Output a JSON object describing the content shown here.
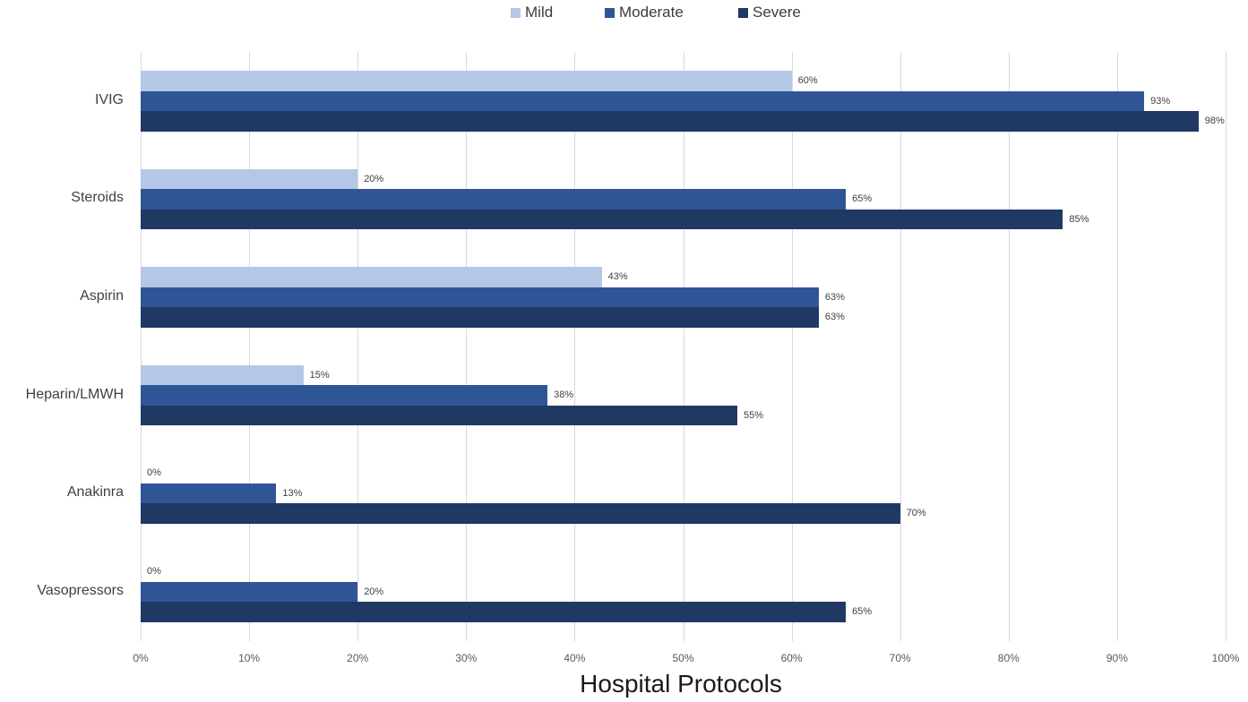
{
  "chart_data": {
    "type": "bar",
    "orientation": "horizontal",
    "title": "",
    "xlabel": "Hospital Protocols",
    "ylabel": "",
    "xlim": [
      0,
      100
    ],
    "x_ticks": [
      "0%",
      "10%",
      "20%",
      "30%",
      "40%",
      "50%",
      "60%",
      "70%",
      "80%",
      "90%",
      "100%"
    ],
    "grid": true,
    "legend_position": "top",
    "categories": [
      "IVIG",
      "Steroids",
      "Aspirin",
      "Heparin/LMWH",
      "Anakinra",
      "Vasopressors"
    ],
    "series": [
      {
        "name": "Mild",
        "color": "#b4c7e7",
        "values": [
          60,
          20,
          43,
          15,
          0,
          0
        ]
      },
      {
        "name": "Moderate",
        "color": "#2f5597",
        "values": [
          93,
          65,
          63,
          38,
          13,
          20
        ]
      },
      {
        "name": "Severe",
        "color": "#203864",
        "values": [
          98,
          85,
          63,
          55,
          70,
          65
        ]
      }
    ],
    "bar_lengths": [
      [
        60,
        92.5,
        97.5
      ],
      [
        20,
        65,
        85
      ],
      [
        42.5,
        62.5,
        62.5
      ],
      [
        15,
        37.5,
        55
      ],
      [
        0,
        12.5,
        70
      ],
      [
        0,
        20,
        65
      ]
    ]
  }
}
